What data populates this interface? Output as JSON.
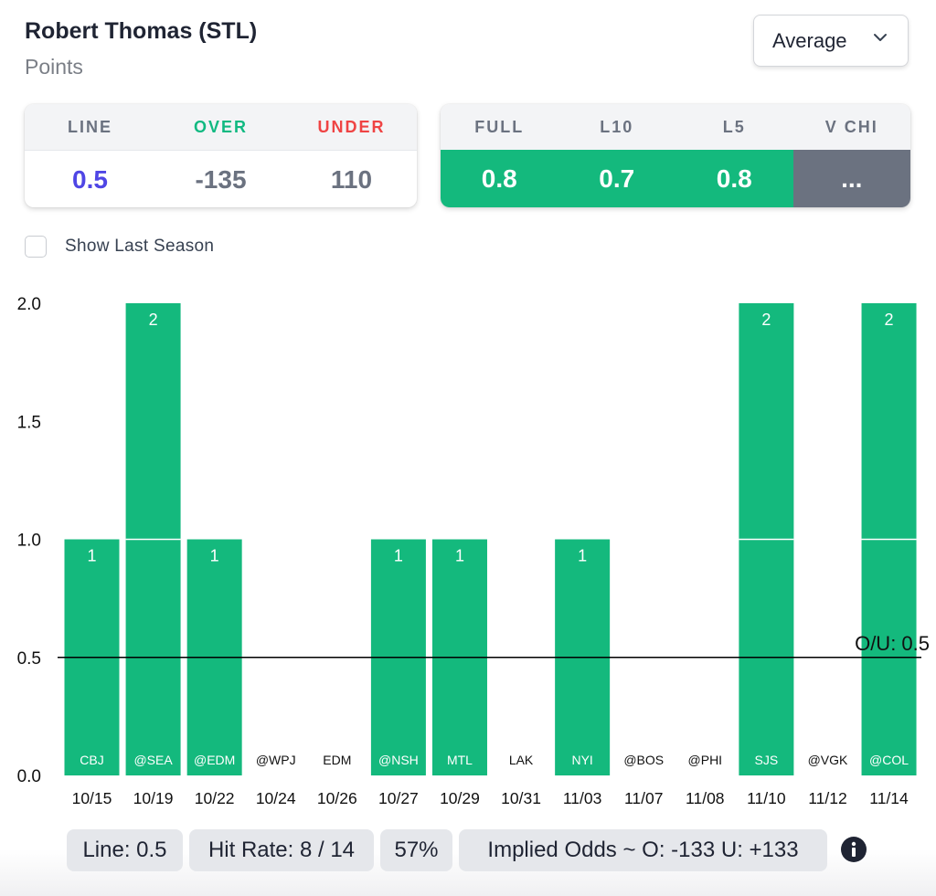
{
  "header": {
    "player": "Robert Thomas (STL)",
    "stat": "Points",
    "dropdown_value": "Average"
  },
  "odds_card": {
    "headers": [
      "LINE",
      "OVER",
      "UNDER"
    ],
    "values": [
      "0.5",
      "-135",
      "110"
    ],
    "colors": {
      "line_value": "#4f46e5",
      "over_header": "#10b981",
      "under_header": "#ef4444"
    }
  },
  "avg_card": {
    "headers": [
      "FULL",
      "L10",
      "L5",
      "V CHI"
    ],
    "values": [
      "0.8",
      "0.7",
      "0.8",
      "..."
    ]
  },
  "show_last_season": {
    "label": "Show Last Season",
    "checked": false
  },
  "chart_data": {
    "type": "bar",
    "categories": [
      "10/15",
      "10/19",
      "10/22",
      "10/24",
      "10/26",
      "10/27",
      "10/29",
      "10/31",
      "11/03",
      "11/07",
      "11/08",
      "11/10",
      "11/12",
      "11/14"
    ],
    "opponents": [
      "CBJ",
      "@SEA",
      "@EDM",
      "@WPJ",
      "EDM",
      "@NSH",
      "MTL",
      "LAK",
      "NYI",
      "@BOS",
      "@PHI",
      "SJS",
      "@VGK",
      "@COL"
    ],
    "values": [
      1,
      2,
      1,
      0,
      0,
      1,
      1,
      0,
      1,
      0,
      0,
      2,
      0,
      2
    ],
    "ylim": [
      0,
      2
    ],
    "yticks": [
      "0.0",
      "0.5",
      "1.0",
      "1.5",
      "2.0"
    ],
    "line": 0.5,
    "line_label": "O/U: 0.5",
    "bar_color": "#14b97d",
    "grid": false
  },
  "footer": {
    "line": "Line: 0.5",
    "hit_rate": "Hit Rate: 8 / 14",
    "pct": "57%",
    "implied": "Implied Odds ~ O: -133 U: +133"
  }
}
